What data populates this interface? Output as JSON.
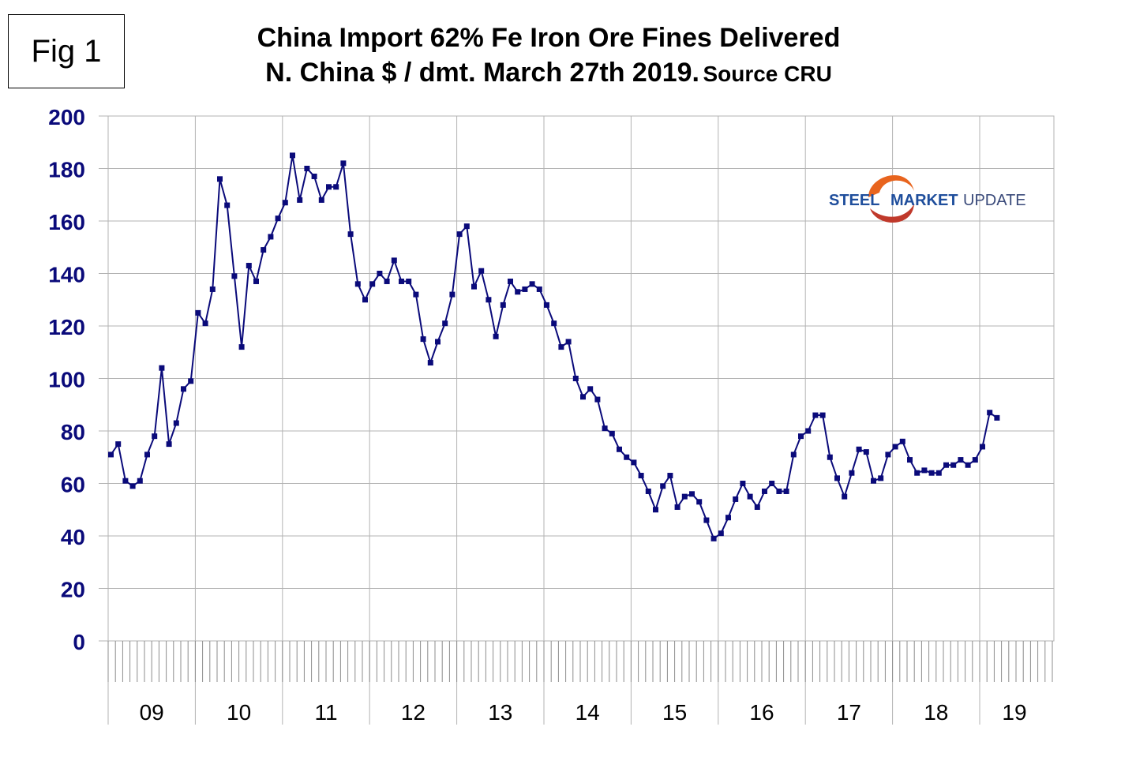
{
  "figure_label": "Fig 1",
  "title_line1": "China Import 62% Fe Iron Ore Fines Delivered",
  "title_line2": "N. China $ / dmt. March 27th 2019.",
  "source_text": "Source CRU",
  "logo": {
    "word1": "STEEL",
    "word2": "MARKET",
    "word3": "UPDATE",
    "colors": {
      "steel": "#1f4e9c",
      "market": "#1f4e9c",
      "update": "#3a4a7a",
      "swoosh": "#e8641e"
    }
  },
  "colors": {
    "line": "#0a0a7a",
    "marker": "#0a0a7a",
    "axis_text": "#0a0a7a",
    "grid": "#b3b3b3"
  },
  "chart_data": {
    "type": "line",
    "title": "China Import 62% Fe Iron Ore Fines Delivered N. China $ / dmt. March 27th 2019. Source CRU",
    "ylim": [
      0,
      200
    ],
    "yticks": [
      0,
      20,
      40,
      60,
      80,
      100,
      120,
      140,
      160,
      180,
      200
    ],
    "year_labels": [
      "09",
      "10",
      "11",
      "12",
      "13",
      "14",
      "15",
      "16",
      "17",
      "18",
      "19"
    ],
    "grid": true,
    "series": [
      {
        "values": [
          71,
          75,
          61,
          59,
          61,
          71,
          78,
          104,
          75,
          83,
          96,
          99,
          125,
          121,
          134,
          176,
          166,
          139,
          112,
          143,
          137,
          149,
          154,
          161,
          167,
          185,
          168,
          180,
          177,
          168,
          173,
          173,
          182,
          155,
          136,
          130,
          136,
          140,
          137,
          145,
          137,
          137,
          132,
          115,
          106,
          114,
          121,
          132,
          155,
          158,
          135,
          141,
          130,
          116,
          128,
          137,
          133,
          134,
          136,
          134,
          128,
          121,
          112,
          114,
          100,
          93,
          96,
          92,
          81,
          79,
          73,
          70,
          68,
          63,
          57,
          50,
          59,
          63,
          51,
          55,
          56,
          53,
          46,
          39,
          41,
          47,
          54,
          60,
          55,
          51,
          57,
          60,
          57,
          57,
          71,
          78,
          80,
          86,
          86,
          70,
          62,
          55,
          64,
          73,
          72,
          61,
          62,
          71,
          74,
          76,
          69,
          64,
          65,
          64,
          64,
          67,
          67,
          69,
          67,
          69,
          74,
          87,
          85
        ]
      }
    ]
  }
}
